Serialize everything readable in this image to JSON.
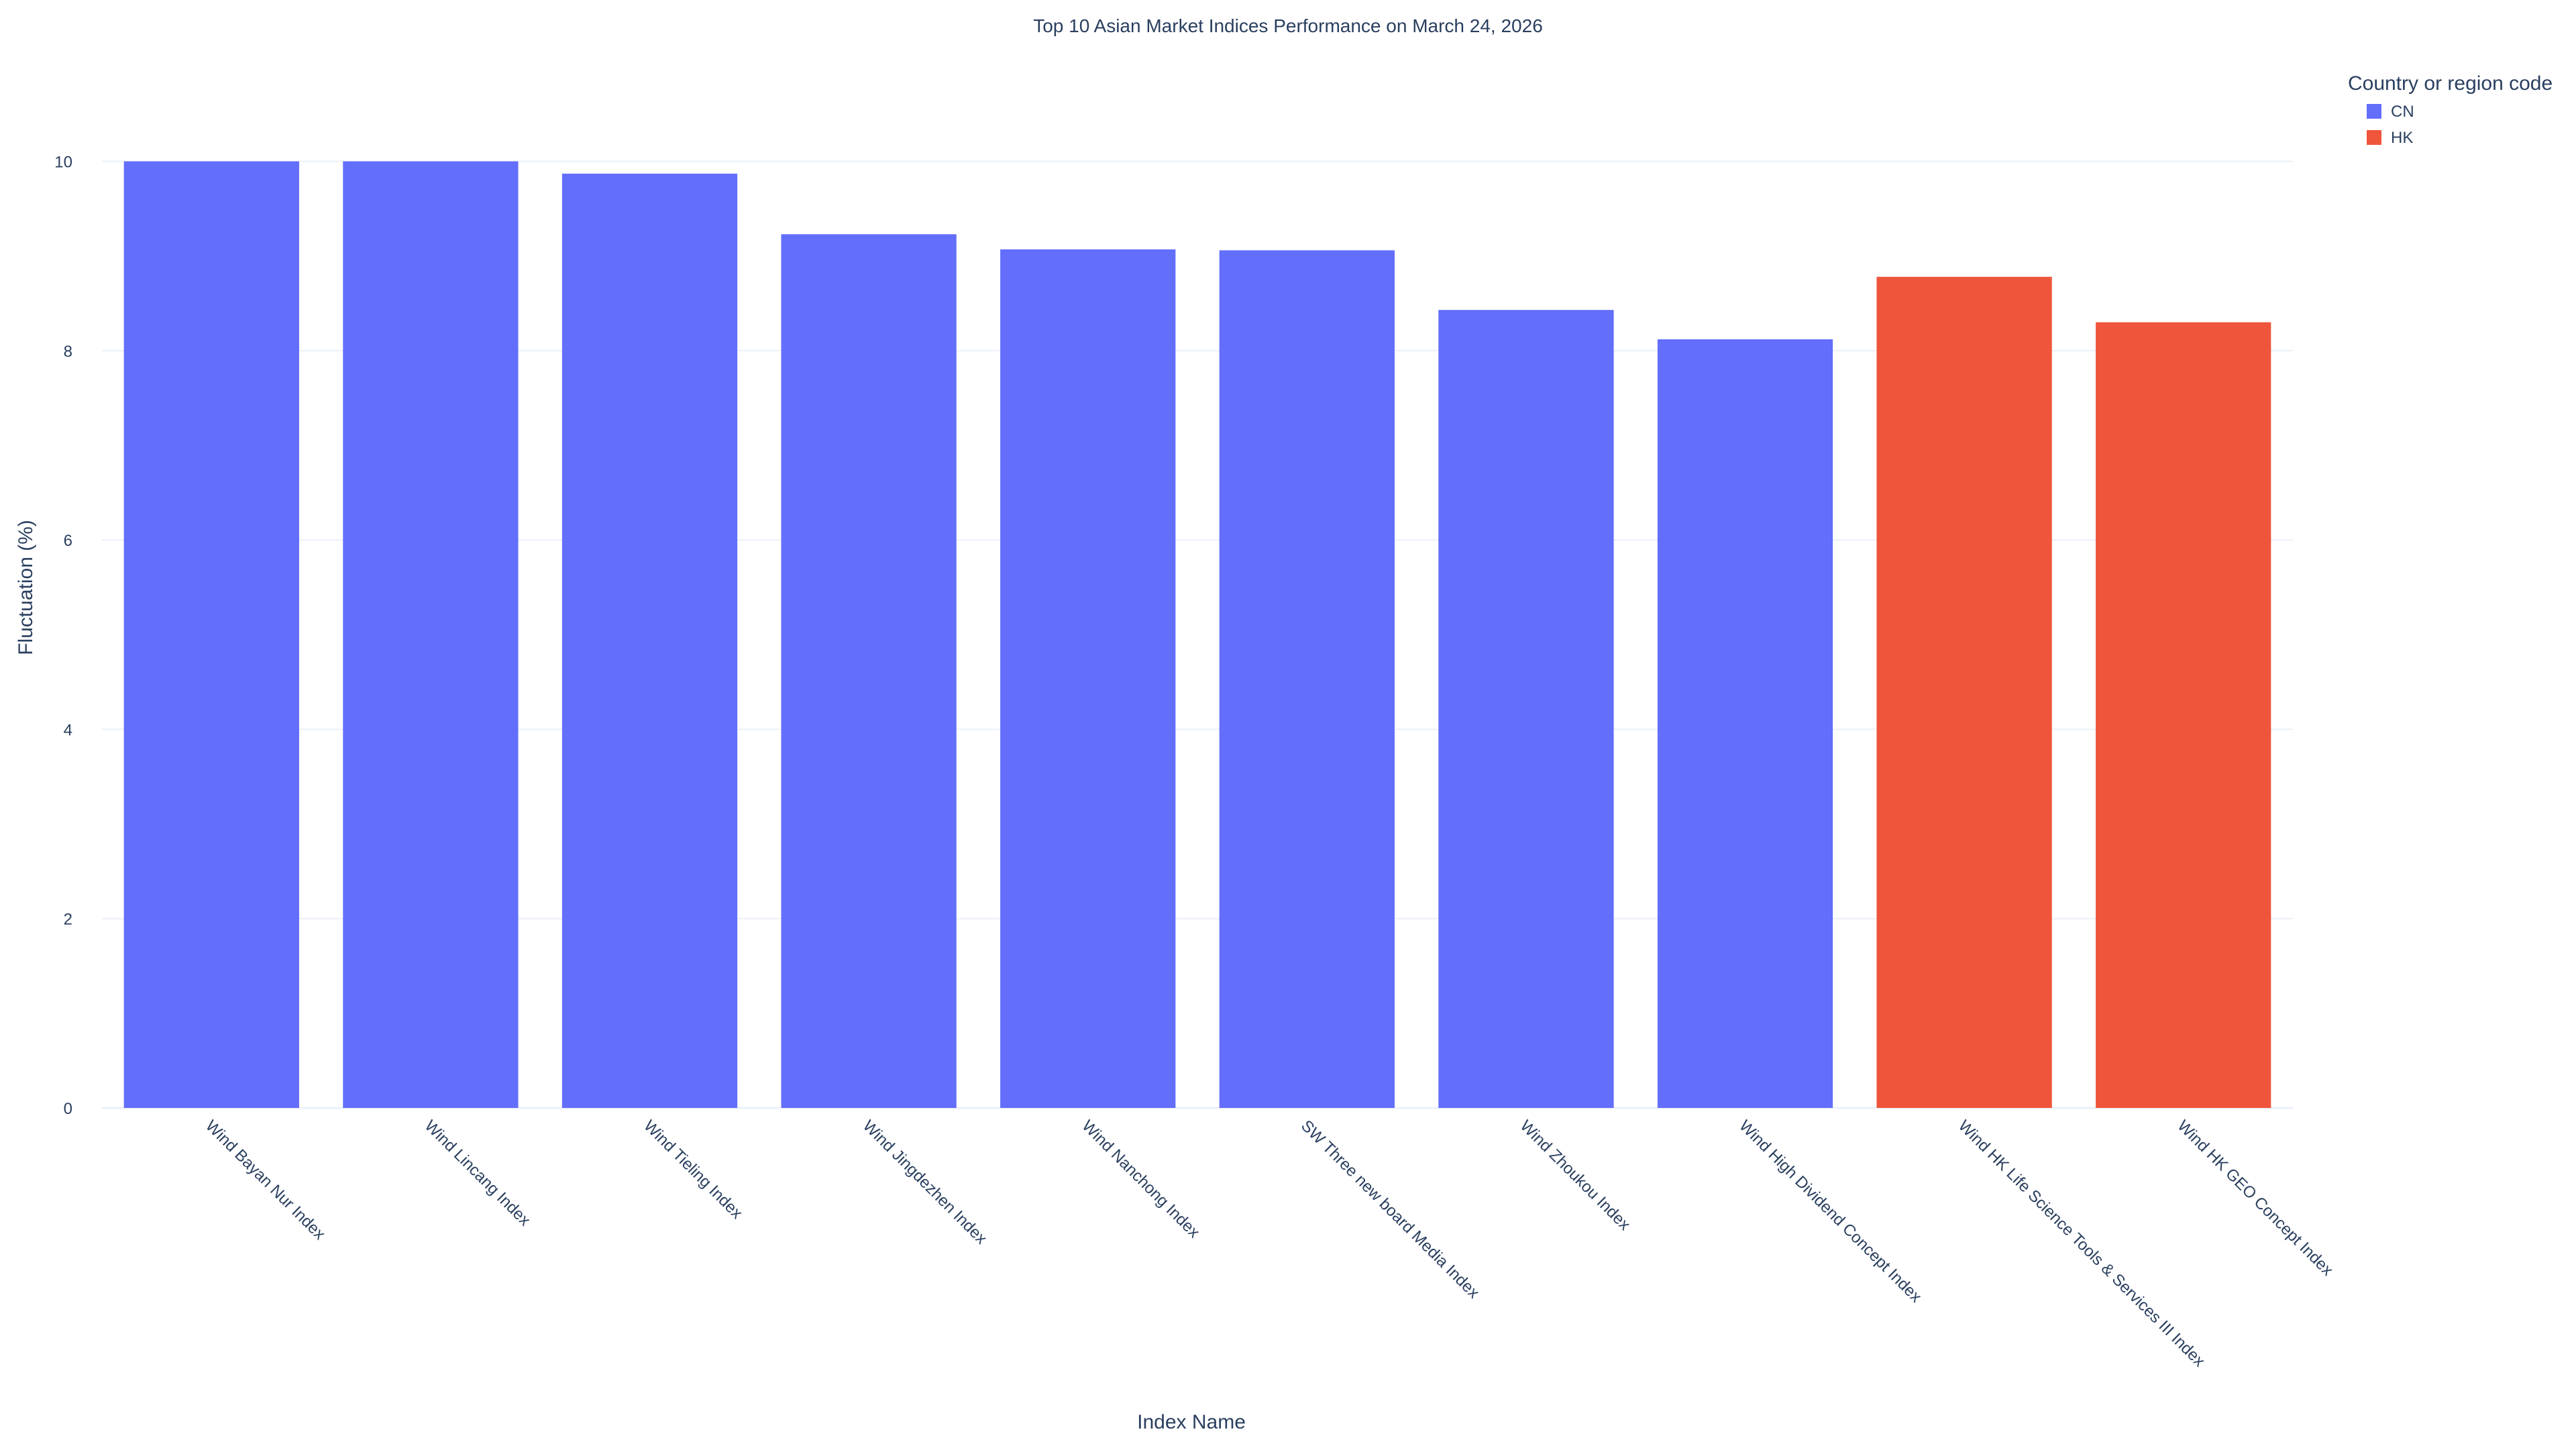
{
  "chart_data": {
    "type": "bar",
    "title": "Top 10 Asian Market Indices Performance on March 24, 2026",
    "xlabel": "Index Name",
    "ylabel": "Fluctuation (%)",
    "ylim": [
      0,
      10.5
    ],
    "y_ticks": [
      0,
      2,
      4,
      6,
      8,
      10
    ],
    "grid": true,
    "legend": {
      "title": "Country or region code",
      "position": "top-right",
      "items": [
        {
          "name": "CN",
          "color": "#636efa"
        },
        {
          "name": "HK",
          "color": "#ef553b"
        }
      ]
    },
    "categories": [
      "Wind Bayan Nur Index",
      "Wind Lincang Index",
      "Wind Tieling Index",
      "Wind Jingdezhen Index",
      "Wind Nanchong Index",
      "SW Three new board Media Index",
      "Wind Zhoukou Index",
      "Wind High Dividend Concept Index",
      "Wind HK Life Science Tools & Services III Index",
      "Wind HK GEO Concept Index"
    ],
    "series": [
      {
        "name": "CN",
        "color": "#636efa",
        "values": [
          10.0,
          10.0,
          9.87,
          9.23,
          9.07,
          9.06,
          8.43,
          8.12,
          null,
          null
        ]
      },
      {
        "name": "HK",
        "color": "#ef553b",
        "values": [
          null,
          null,
          null,
          null,
          null,
          null,
          null,
          null,
          8.78,
          8.3
        ]
      }
    ]
  }
}
